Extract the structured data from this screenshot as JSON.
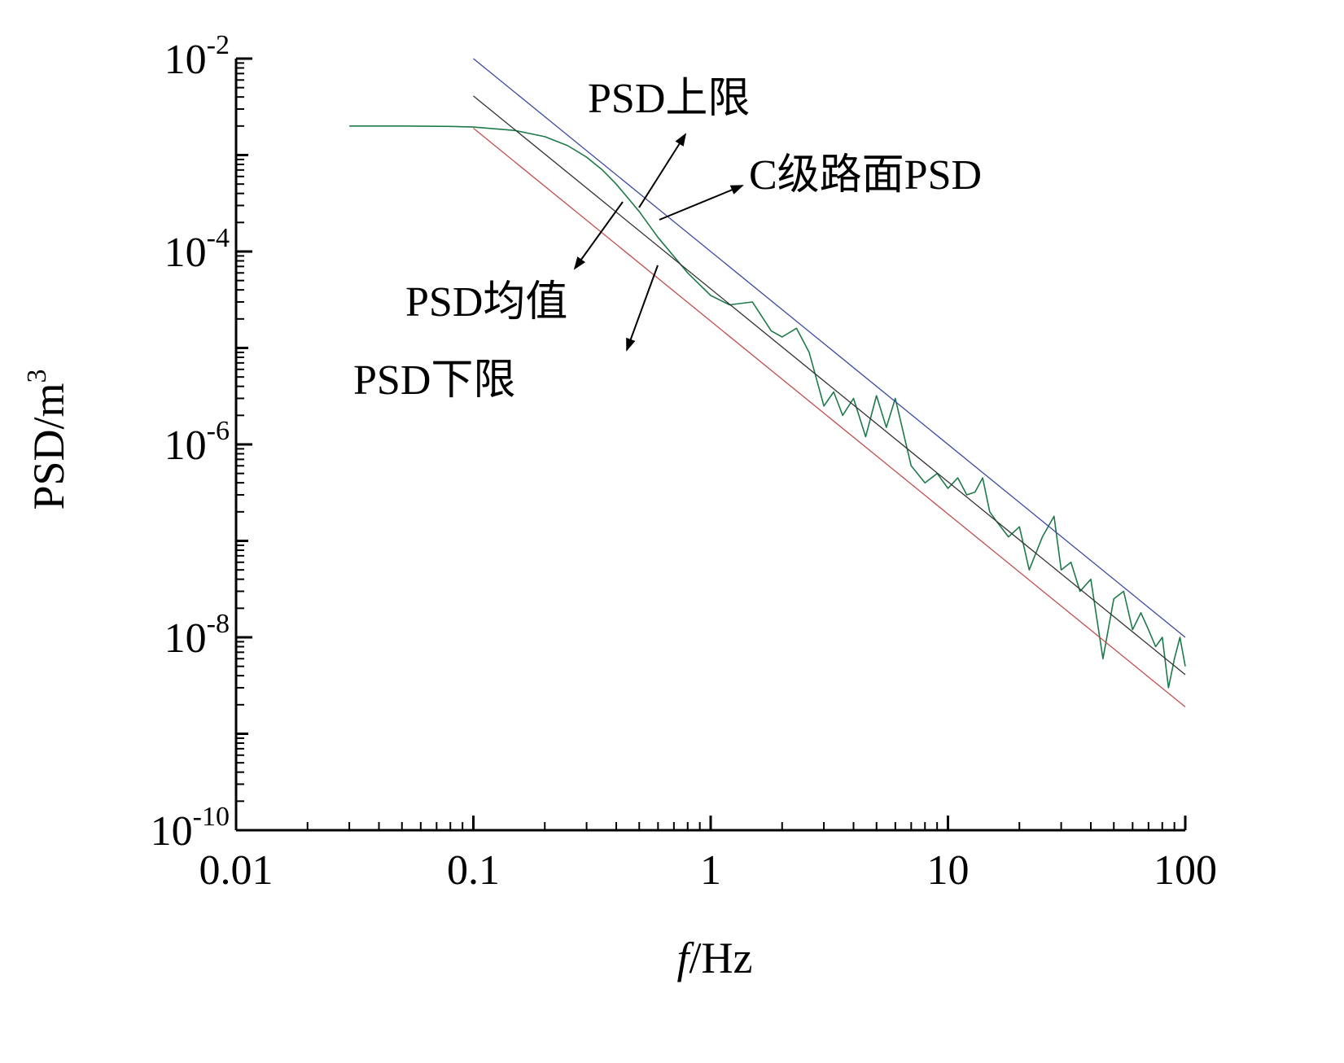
{
  "chart_data": {
    "type": "line",
    "title": "",
    "xlabel_italic": "f",
    "xlabel_rest": "/Hz",
    "ylabel": "PSD/m",
    "ylabel_sup": "3",
    "xscale": "log",
    "yscale": "log",
    "xlim": [
      0.01,
      100
    ],
    "ylim": [
      1e-10,
      0.01
    ],
    "grid": false,
    "x_ticks": [
      {
        "value": 0.01,
        "label": "0.01"
      },
      {
        "value": 0.1,
        "label": "0.1"
      },
      {
        "value": 1,
        "label": "1"
      },
      {
        "value": 10,
        "label": "10"
      },
      {
        "value": 100,
        "label": "100"
      }
    ],
    "y_ticks": [
      {
        "value": 1e-10,
        "base": "10",
        "exp": "-10"
      },
      {
        "value": 1e-08,
        "base": "10",
        "exp": "-8"
      },
      {
        "value": 1e-06,
        "base": "10",
        "exp": "-6"
      },
      {
        "value": 0.0001,
        "base": "10",
        "exp": "-4"
      },
      {
        "value": 0.01,
        "base": "10",
        "exp": "-2"
      }
    ],
    "series": [
      {
        "name": "PSD上限",
        "color": "#3b4aa0",
        "x": [
          0.1,
          100
        ],
        "y": [
          0.01,
          1e-08
        ]
      },
      {
        "name": "PSD均值",
        "color": "#333333",
        "x": [
          0.1,
          100
        ],
        "y": [
          0.0041,
          4.1e-09
        ]
      },
      {
        "name": "PSD下限",
        "color": "#c0504d",
        "x": [
          0.1,
          100
        ],
        "y": [
          0.0019,
          1.9e-09
        ]
      },
      {
        "name": "C级路面PSD",
        "color": "#1e7a4a",
        "x": [
          0.03,
          0.05,
          0.08,
          0.1,
          0.15,
          0.2,
          0.25,
          0.3,
          0.35,
          0.4,
          0.5,
          0.6,
          0.8,
          1.0,
          1.2,
          1.5,
          1.8,
          2.0,
          2.3,
          2.6,
          3.0,
          3.3,
          3.6,
          4.0,
          4.5,
          5.0,
          5.5,
          6.0,
          7.0,
          8.0,
          9.0,
          10.0,
          11.0,
          12.0,
          13.0,
          14.0,
          15.0,
          16.0,
          18.0,
          20.0,
          22.0,
          25.0,
          28.0,
          30.0,
          33.0,
          36.0,
          40.0,
          45.0,
          50.0,
          55.0,
          60.0,
          65.0,
          70.0,
          75.0,
          80.0,
          85.0,
          90.0,
          95.0,
          100.0
        ],
        "y": [
          0.002,
          0.002,
          0.00198,
          0.00195,
          0.0018,
          0.00155,
          0.00125,
          0.00095,
          0.0007,
          0.0005,
          0.00026,
          0.00014,
          6e-05,
          3.5e-05,
          2.8e-05,
          3e-05,
          1.5e-05,
          1.3e-05,
          1.6e-05,
          9e-06,
          2.5e-06,
          3.5e-06,
          2e-06,
          3e-06,
          1.2e-06,
          3.2e-06,
          1.5e-06,
          3e-06,
          6e-07,
          4e-07,
          5e-07,
          3.5e-07,
          4.5e-07,
          3e-07,
          3.2e-07,
          4.5e-07,
          2e-07,
          1.6e-07,
          1.1e-07,
          1.4e-07,
          5e-08,
          1.1e-07,
          1.8e-07,
          5e-08,
          6e-08,
          3e-08,
          4e-08,
          6e-09,
          2.5e-08,
          3e-08,
          1.2e-08,
          1.8e-08,
          1.2e-08,
          8e-09,
          1e-08,
          3e-09,
          6e-09,
          1e-08,
          5e-09
        ]
      }
    ]
  },
  "annotations": {
    "upper": "PSD上限",
    "road": "C级路面PSD",
    "mean": "PSD均值",
    "lower": "PSD下限"
  }
}
